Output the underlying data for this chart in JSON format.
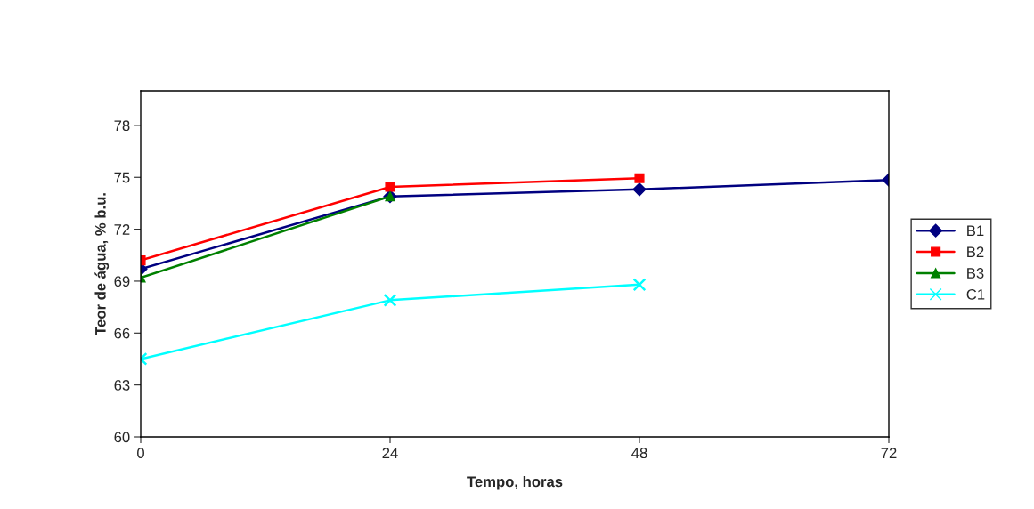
{
  "chart_data": {
    "type": "line",
    "xlabel": "Tempo, horas",
    "ylabel": "Teor de água, % b.u.",
    "xlim": [
      0,
      72
    ],
    "xticks": [
      0,
      24,
      48,
      72
    ],
    "ylim": [
      60,
      80
    ],
    "yticks": [
      60,
      63,
      66,
      69,
      72,
      75,
      78
    ],
    "grid": false,
    "legend": "right",
    "series": [
      {
        "name": "B1",
        "color": "#000080",
        "marker": "diamond",
        "x": [
          0,
          24,
          48,
          72
        ],
        "values": [
          69.7,
          73.9,
          74.3,
          74.85
        ]
      },
      {
        "name": "B2",
        "color": "#ff0000",
        "marker": "square",
        "x": [
          0,
          24,
          48
        ],
        "values": [
          70.2,
          74.45,
          74.95
        ]
      },
      {
        "name": "B3",
        "color": "#008000",
        "marker": "triangle",
        "x": [
          0,
          24
        ],
        "values": [
          69.2,
          73.9
        ]
      },
      {
        "name": "C1",
        "color": "#00ffff",
        "marker": "cross",
        "x": [
          0,
          24,
          48
        ],
        "values": [
          64.5,
          67.9,
          68.8
        ]
      }
    ]
  }
}
